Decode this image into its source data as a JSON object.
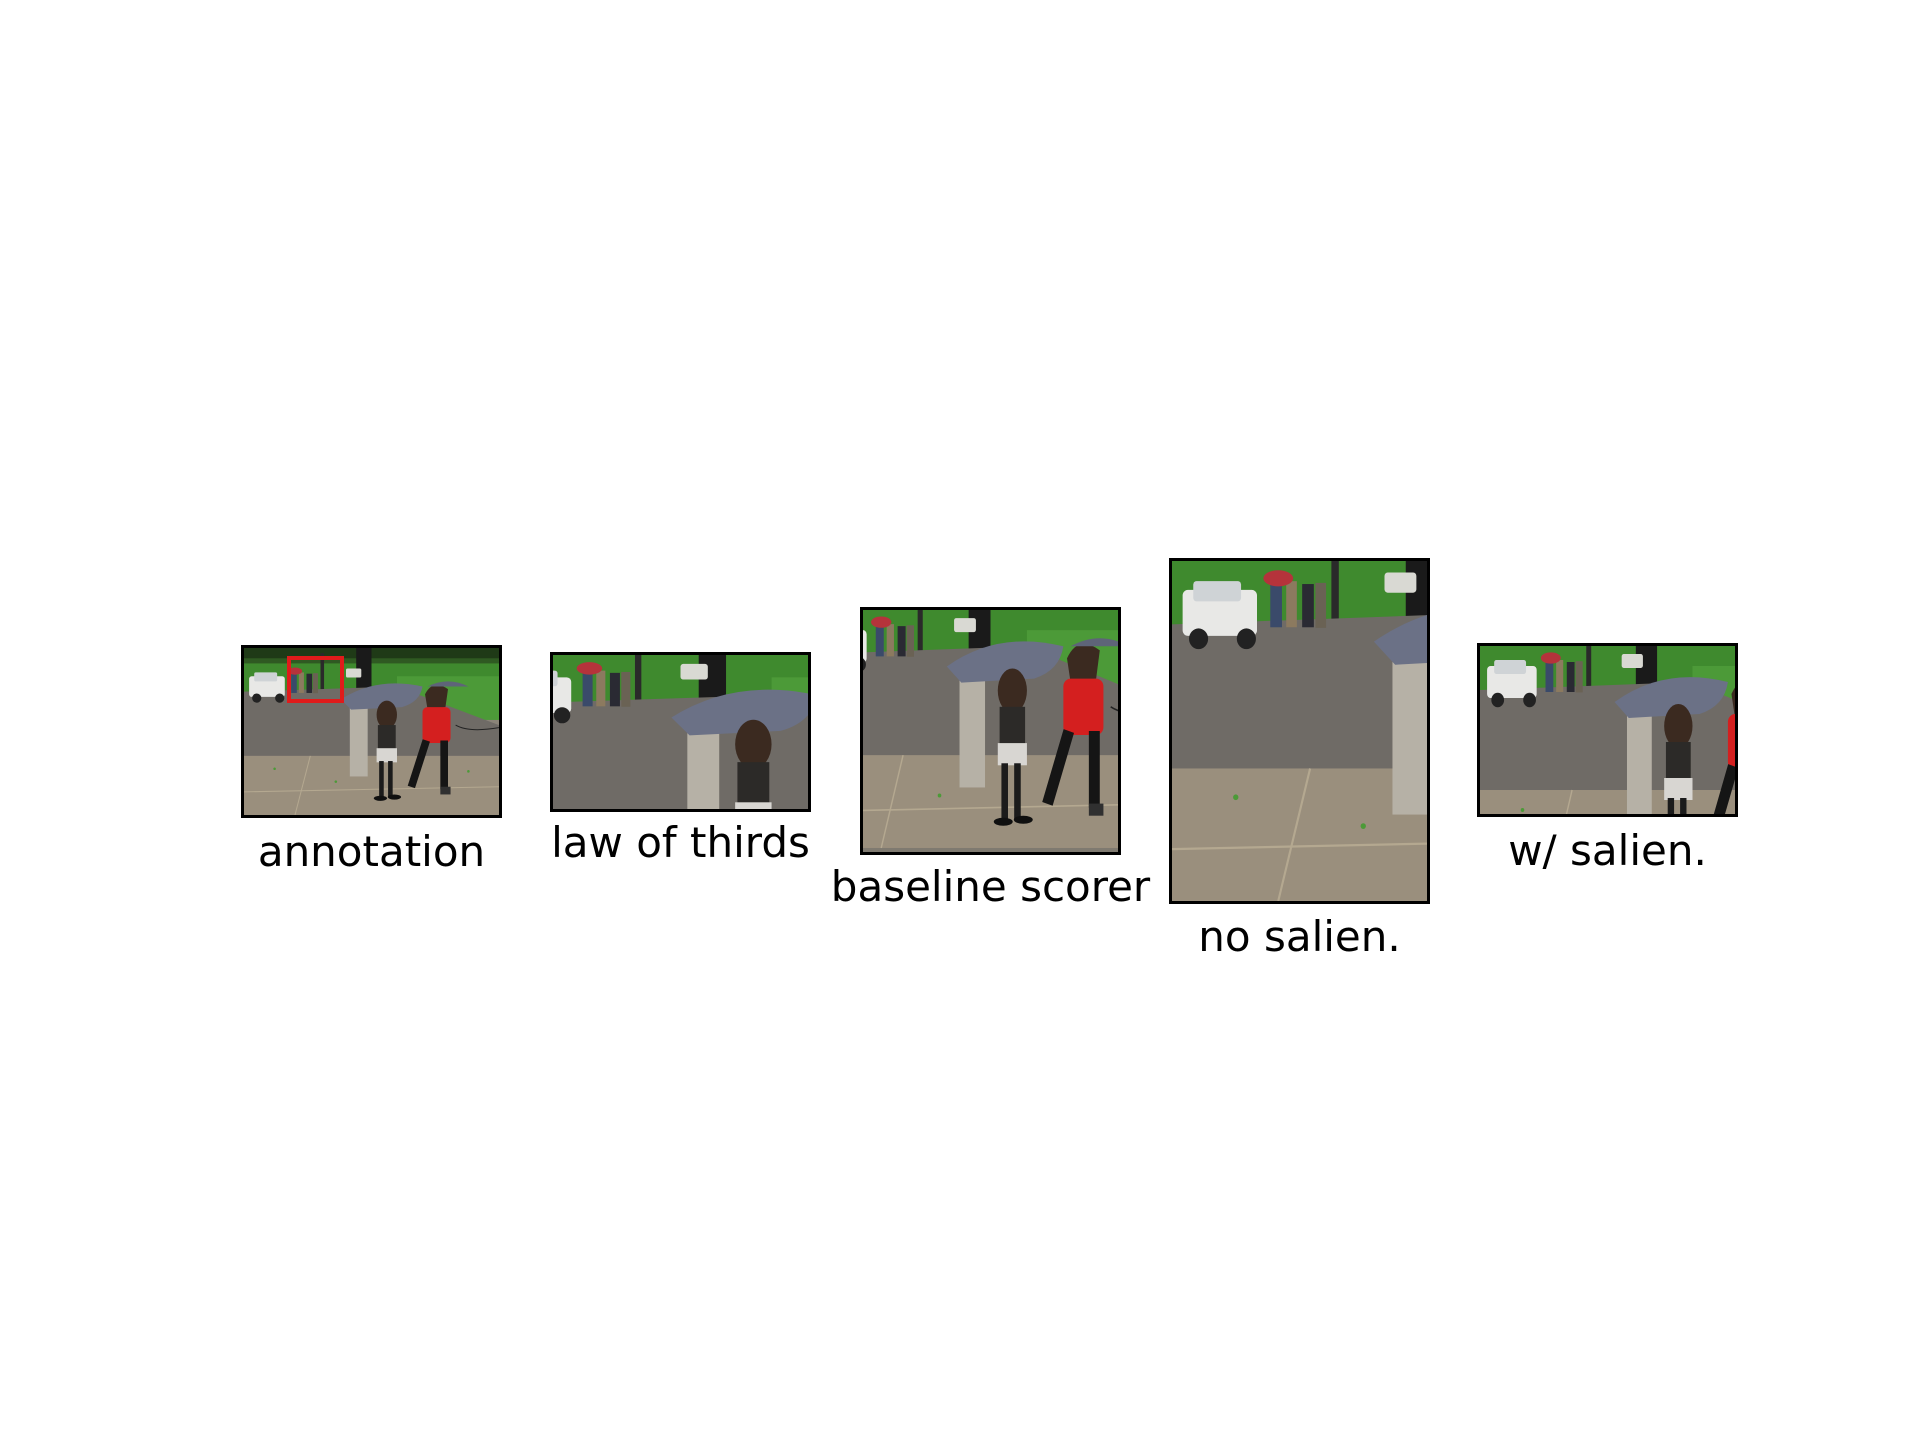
{
  "panels": [
    {
      "id": "annotation",
      "caption": "annotation"
    },
    {
      "id": "law-of-thirds",
      "caption": "law of thirds"
    },
    {
      "id": "baseline-scorer",
      "caption": "baseline scorer"
    },
    {
      "id": "no-salien",
      "caption": "no salien."
    },
    {
      "id": "w-salien",
      "caption": "w/ salien."
    }
  ],
  "colors": {
    "frame": "#000000",
    "annotation_box": "#e01b1b",
    "grass": "#3f8a2e",
    "pavement": "#8a8478",
    "umbrella": "#6b7186",
    "red_jacket": "#d41f1f"
  }
}
